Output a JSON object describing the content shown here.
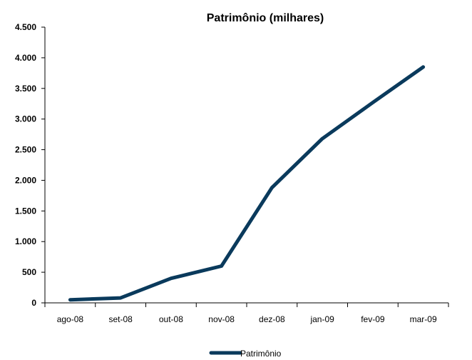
{
  "chart_data": {
    "type": "line",
    "title": "Patrimônio (milhares)",
    "xlabel": "",
    "ylabel": "",
    "categories": [
      "ago-08",
      "set-08",
      "out-08",
      "nov-08",
      "dez-08",
      "jan-09",
      "fev-09",
      "mar-09"
    ],
    "series": [
      {
        "name": "Patrimônio",
        "values": [
          50,
          80,
          400,
          600,
          1880,
          2680,
          3270,
          3850
        ]
      }
    ],
    "ylim": [
      0,
      4500
    ],
    "yticks": [
      0,
      500,
      1000,
      1500,
      2000,
      2500,
      3000,
      3500,
      4000,
      4500
    ],
    "ytick_labels": [
      "0",
      "500",
      "1.000",
      "1.500",
      "2.000",
      "2.500",
      "3.000",
      "3.500",
      "4.000",
      "4.500"
    ],
    "grid": false,
    "legend": "bottom-center",
    "line_color": "#0a3a5c"
  }
}
